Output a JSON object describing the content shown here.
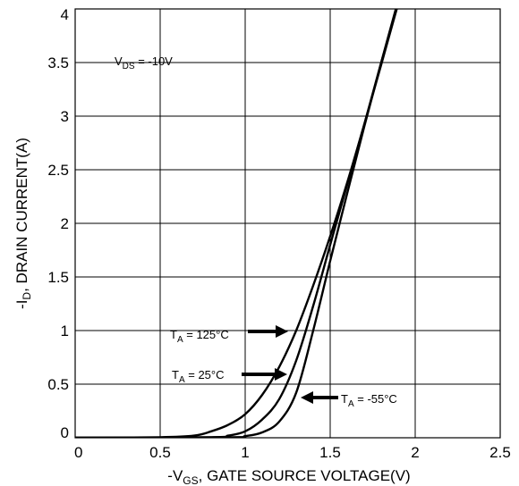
{
  "chart_data": {
    "type": "line",
    "xlabel": {
      "prefix": "-V",
      "sub": "GS",
      "suffix": ", GATE SOURCE VOLTAGE(V)"
    },
    "ylabel": {
      "prefix": "-I",
      "sub": "D",
      "suffix": ", DRAIN CURRENT(A)"
    },
    "xlim": [
      0,
      2.5
    ],
    "ylim": [
      0,
      4
    ],
    "x_ticks": [
      "0",
      "0.5",
      "1",
      "1.5",
      "2",
      "2.5"
    ],
    "y_ticks": [
      "0",
      "0.5",
      "1",
      "1.5",
      "2",
      "2.5",
      "3",
      "3.5",
      "4"
    ],
    "grid": true,
    "condition": {
      "prefix": "V",
      "sub": "DS",
      "suffix": " = -10V"
    },
    "series": [
      {
        "name_prefix": "T",
        "name_sub": "A",
        "name_suffix": " = 125°C",
        "x": [
          0,
          0.5,
          0.7,
          0.8,
          0.9,
          1.0,
          1.1,
          1.2,
          1.3,
          1.4,
          1.5,
          1.6,
          1.7,
          1.8,
          1.9
        ],
        "y": [
          0,
          0.005,
          0.02,
          0.06,
          0.12,
          0.22,
          0.4,
          0.66,
          1.0,
          1.42,
          1.88,
          2.38,
          2.92,
          3.48,
          4.05
        ]
      },
      {
        "name_prefix": "T",
        "name_sub": "A",
        "name_suffix": " = 25°C",
        "x": [
          0,
          0.8,
          0.9,
          1.0,
          1.1,
          1.2,
          1.3,
          1.4,
          1.5,
          1.6,
          1.7,
          1.8,
          1.9
        ],
        "y": [
          0,
          0.005,
          0.02,
          0.06,
          0.17,
          0.36,
          0.72,
          1.23,
          1.8,
          2.36,
          2.92,
          3.5,
          4.05
        ]
      },
      {
        "name_prefix": "T",
        "name_sub": "A",
        "name_suffix": " = -55°C",
        "x": [
          0,
          0.9,
          1.0,
          1.1,
          1.2,
          1.3,
          1.4,
          1.5,
          1.6,
          1.7,
          1.8,
          1.9
        ],
        "y": [
          0,
          0.005,
          0.015,
          0.05,
          0.15,
          0.42,
          1.0,
          1.65,
          2.28,
          2.9,
          3.5,
          4.08
        ]
      }
    ]
  }
}
